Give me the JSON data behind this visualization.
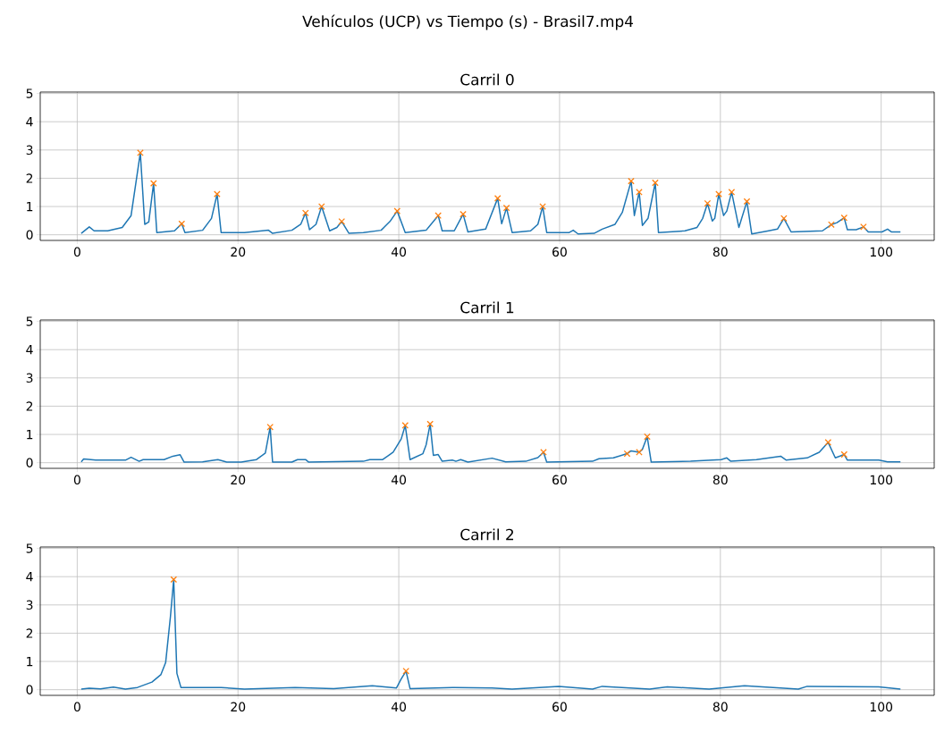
{
  "chart_data": [
    {
      "type": "line",
      "title": "Vehículos (UCP) vs Tiempo (s) - Brasil7.mp4",
      "subtitle": "Carril 0",
      "xlim": [
        -4.6,
        106.6
      ],
      "ylim": [
        -0.2,
        5.05
      ],
      "xticks": [
        0,
        20,
        40,
        60,
        80,
        100
      ],
      "yticks": [
        0,
        1,
        2,
        3,
        4,
        5
      ],
      "grid": true,
      "series": [
        {
          "type": "line",
          "color": "#1f77b4",
          "x": [
            0.5,
            1.5,
            2.1,
            3.8,
            5.6,
            6.7,
            7.85,
            8.4,
            8.9,
            9.5,
            9.9,
            12.1,
            13.0,
            13.4,
            15.6,
            16.7,
            17.4,
            17.9,
            20.8,
            23.8,
            24.3,
            26.7,
            27.8,
            28.4,
            28.9,
            29.7,
            30.4,
            31.4,
            32.3,
            32.9,
            33.8,
            35.6,
            37.8,
            38.9,
            39.8,
            40.8,
            43.4,
            44.9,
            45.4,
            46.9,
            48.0,
            48.6,
            50.8,
            52.3,
            52.8,
            53.4,
            54.1,
            56.4,
            57.3,
            57.9,
            58.4,
            61.2,
            61.7,
            62.3,
            64.3,
            65.3,
            66.9,
            67.8,
            68.9,
            69.3,
            69.9,
            70.3,
            71.0,
            71.9,
            72.3,
            75.6,
            77.1,
            77.8,
            78.4,
            79.0,
            79.3,
            79.8,
            80.4,
            80.8,
            81.4,
            82.3,
            83.3,
            83.9,
            86.0,
            87.1,
            87.9,
            88.8,
            92.7,
            93.8,
            94.5,
            95.4,
            95.8,
            96.9,
            97.8,
            98.4,
            100.1,
            100.8,
            101.3,
            102.4
          ],
          "values": [
            0.05,
            0.28,
            0.14,
            0.14,
            0.26,
            0.68,
            2.9,
            0.37,
            0.45,
            1.82,
            0.08,
            0.14,
            0.39,
            0.08,
            0.16,
            0.58,
            1.44,
            0.08,
            0.08,
            0.16,
            0.05,
            0.16,
            0.37,
            0.77,
            0.18,
            0.37,
            1.0,
            0.14,
            0.26,
            0.47,
            0.05,
            0.08,
            0.16,
            0.47,
            0.84,
            0.08,
            0.16,
            0.68,
            0.14,
            0.14,
            0.73,
            0.1,
            0.2,
            1.29,
            0.39,
            0.95,
            0.08,
            0.14,
            0.37,
            1.0,
            0.08,
            0.08,
            0.16,
            0.03,
            0.05,
            0.2,
            0.37,
            0.79,
            1.9,
            0.68,
            1.51,
            0.33,
            0.58,
            1.84,
            0.08,
            0.14,
            0.26,
            0.58,
            1.11,
            0.49,
            0.58,
            1.44,
            0.68,
            0.84,
            1.51,
            0.26,
            1.18,
            0.03,
            0.14,
            0.2,
            0.58,
            0.1,
            0.14,
            0.36,
            0.43,
            0.6,
            0.18,
            0.18,
            0.28,
            0.1,
            0.1,
            0.2,
            0.1,
            0.1
          ]
        },
        {
          "type": "scatter",
          "marker": "cross",
          "color": "#ff7f0e",
          "x": [
            7.85,
            9.5,
            13.0,
            17.4,
            28.4,
            30.4,
            32.9,
            39.8,
            44.9,
            48.0,
            52.3,
            53.4,
            57.9,
            68.9,
            69.9,
            71.9,
            78.4,
            79.8,
            81.4,
            83.3,
            87.9,
            93.8,
            95.4,
            97.8
          ],
          "values": [
            2.9,
            1.82,
            0.39,
            1.44,
            0.77,
            1.0,
            0.47,
            0.84,
            0.68,
            0.73,
            1.29,
            0.95,
            1.0,
            1.9,
            1.51,
            1.84,
            1.11,
            1.44,
            1.51,
            1.18,
            0.58,
            0.36,
            0.6,
            0.28
          ]
        }
      ]
    },
    {
      "type": "line",
      "title": "Carril 1",
      "xlim": [
        -4.6,
        106.6
      ],
      "ylim": [
        -0.2,
        5.05
      ],
      "xticks": [
        0,
        20,
        40,
        60,
        80,
        100
      ],
      "yticks": [
        0,
        1,
        2,
        3,
        4,
        5
      ],
      "grid": true,
      "series": [
        {
          "type": "line",
          "color": "#1f77b4",
          "x": [
            0.5,
            0.8,
            2.3,
            6.0,
            6.7,
            7.7,
            8.2,
            10.8,
            11.9,
            12.8,
            13.3,
            15.6,
            17.5,
            18.6,
            20.4,
            22.3,
            23.4,
            24.0,
            24.3,
            26.7,
            27.4,
            28.4,
            28.8,
            35.6,
            36.4,
            38.0,
            39.3,
            40.3,
            40.8,
            41.4,
            43.0,
            43.4,
            43.9,
            44.3,
            44.9,
            45.4,
            46.7,
            47.1,
            47.7,
            48.6,
            51.6,
            53.3,
            55.8,
            57.3,
            58.0,
            58.4,
            64.1,
            64.9,
            66.7,
            68.4,
            68.9,
            69.9,
            70.3,
            70.9,
            71.4,
            76.3,
            80.1,
            80.8,
            81.3,
            84.5,
            87.5,
            88.2,
            90.8,
            92.3,
            93.4,
            94.3,
            95.4,
            95.8,
            99.7,
            100.8,
            102.4
          ],
          "values": [
            0.03,
            0.13,
            0.09,
            0.09,
            0.19,
            0.05,
            0.11,
            0.11,
            0.23,
            0.28,
            0.02,
            0.03,
            0.11,
            0.02,
            0.02,
            0.11,
            0.34,
            1.26,
            0.02,
            0.02,
            0.11,
            0.11,
            0.02,
            0.05,
            0.11,
            0.11,
            0.37,
            0.84,
            1.32,
            0.11,
            0.32,
            0.63,
            1.37,
            0.26,
            0.29,
            0.05,
            0.09,
            0.05,
            0.11,
            0.02,
            0.16,
            0.03,
            0.05,
            0.18,
            0.37,
            0.02,
            0.05,
            0.14,
            0.17,
            0.32,
            0.42,
            0.37,
            0.47,
            0.92,
            0.02,
            0.05,
            0.11,
            0.17,
            0.05,
            0.11,
            0.23,
            0.09,
            0.17,
            0.37,
            0.72,
            0.17,
            0.29,
            0.09,
            0.09,
            0.03,
            0.03
          ]
        },
        {
          "type": "scatter",
          "marker": "cross",
          "color": "#ff7f0e",
          "x": [
            24.0,
            40.8,
            43.9,
            58.0,
            68.4,
            69.9,
            70.9,
            93.4,
            95.4
          ],
          "values": [
            1.26,
            1.32,
            1.37,
            0.37,
            0.32,
            0.37,
            0.92,
            0.72,
            0.29
          ]
        }
      ]
    },
    {
      "type": "line",
      "title": "Carril 2",
      "xlim": [
        -4.6,
        106.6
      ],
      "ylim": [
        -0.2,
        5.05
      ],
      "xticks": [
        0,
        20,
        40,
        60,
        80,
        100
      ],
      "yticks": [
        0,
        1,
        2,
        3,
        4,
        5
      ],
      "grid": true,
      "series": [
        {
          "type": "line",
          "color": "#1f77b4",
          "x": [
            0.5,
            1.5,
            2.9,
            4.5,
            6.0,
            7.5,
            9.3,
            10.4,
            11.0,
            11.6,
            12.0,
            12.4,
            12.9,
            17.9,
            20.8,
            27.1,
            31.9,
            36.7,
            39.7,
            40.3,
            40.9,
            41.4,
            46.7,
            51.6,
            54.1,
            59.9,
            64.1,
            65.3,
            71.2,
            73.4,
            78.6,
            83.0,
            89.7,
            90.8,
            99.7,
            102.4
          ],
          "values": [
            0.02,
            0.05,
            0.03,
            0.09,
            0.02,
            0.08,
            0.27,
            0.53,
            0.96,
            2.6,
            3.9,
            0.58,
            0.08,
            0.08,
            0.02,
            0.08,
            0.04,
            0.14,
            0.06,
            0.38,
            0.66,
            0.04,
            0.08,
            0.06,
            0.02,
            0.12,
            0.02,
            0.12,
            0.02,
            0.1,
            0.02,
            0.14,
            0.02,
            0.12,
            0.1,
            0.02
          ]
        },
        {
          "type": "scatter",
          "marker": "cross",
          "color": "#ff7f0e",
          "x": [
            12.0,
            40.9
          ],
          "values": [
            3.9,
            0.66
          ]
        }
      ]
    }
  ]
}
